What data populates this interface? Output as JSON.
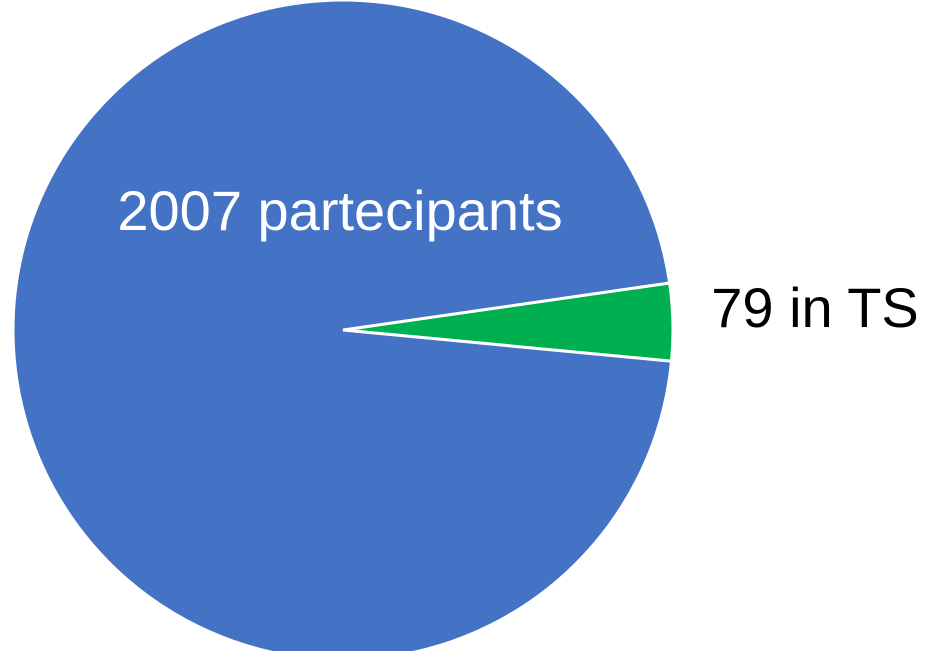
{
  "chart_data": {
    "type": "pie",
    "categories": [
      "2007 partecipants",
      "79 in TS"
    ],
    "values": [
      2007,
      79
    ],
    "value_labels": [
      "2007 partecipants",
      "79 in TS"
    ],
    "colors": [
      "#4472c4",
      "#00b050"
    ]
  }
}
